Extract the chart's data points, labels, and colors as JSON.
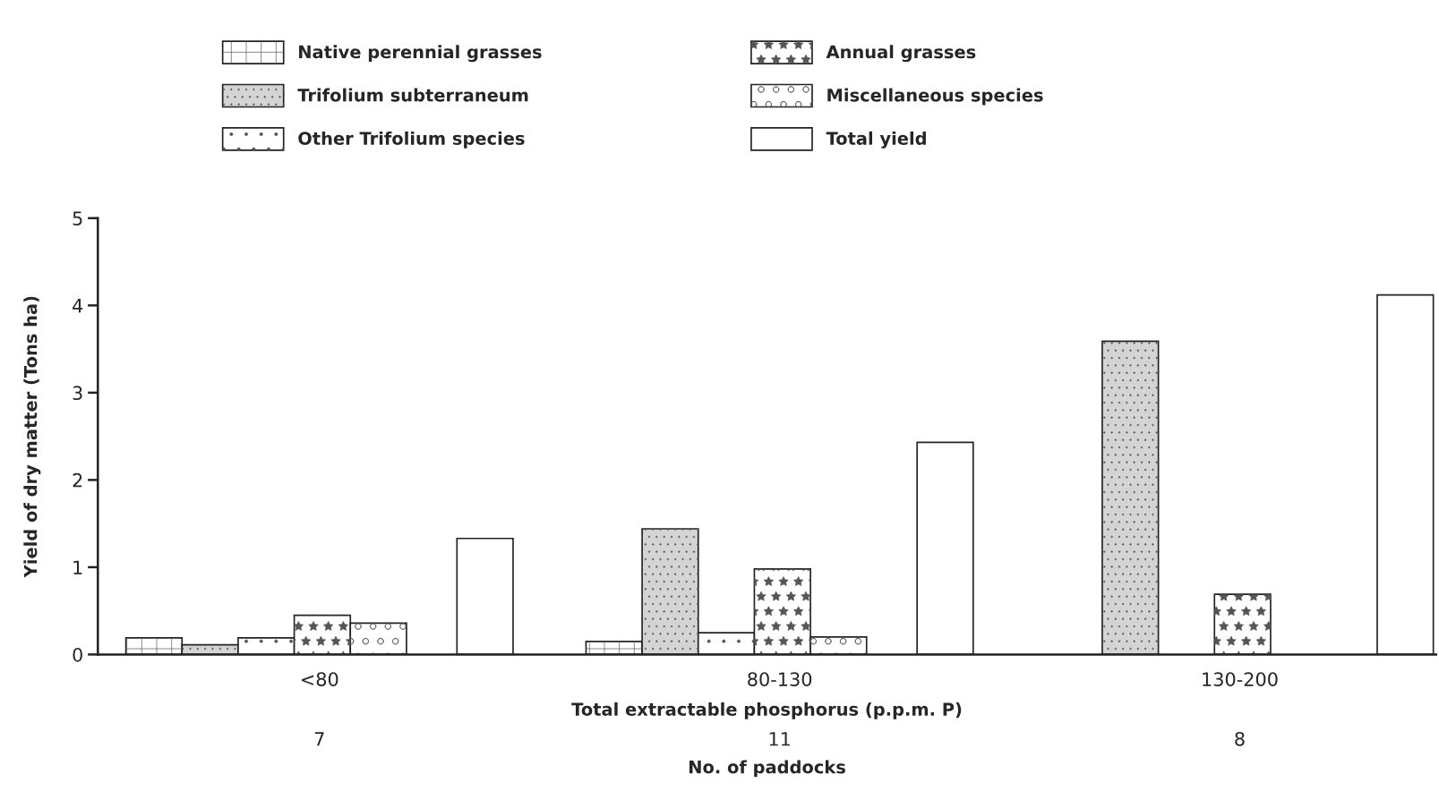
{
  "chart_data": {
    "type": "bar",
    "xlabel": "Total extractable phosphorus (p.p.m. P)",
    "ylabel": "Yield of dry matter (Tons ha)",
    "categories": [
      "<80",
      "80-130",
      "130-200"
    ],
    "series": [
      {
        "name": "Native perennial grasses",
        "color": "#ffffff",
        "values": [
          0.19,
          0.15,
          0
        ]
      },
      {
        "name": "Trifolium subterraneum",
        "color": "#d4d4d4",
        "values": [
          0.11,
          1.44,
          3.59
        ]
      },
      {
        "name": "Other Trifolium species",
        "color": "#ffffff",
        "values": [
          0.19,
          0.25,
          0
        ]
      },
      {
        "name": "Annual grasses",
        "color": "#ffffff",
        "values": [
          0.45,
          0.98,
          0.69
        ]
      },
      {
        "name": "Miscellaneous species",
        "color": "#ffffff",
        "values": [
          0.36,
          0.2,
          0
        ]
      },
      {
        "name": "Total yield",
        "color": "#ffffff",
        "values": [
          1.33,
          2.43,
          4.12
        ]
      }
    ],
    "ylim": [
      0,
      5
    ],
    "yticks": [
      0,
      1,
      2,
      3,
      4,
      5
    ],
    "grid": false,
    "legend": "top",
    "annotations": [
      "7",
      "11",
      "8",
      "No. of paddocks"
    ]
  }
}
